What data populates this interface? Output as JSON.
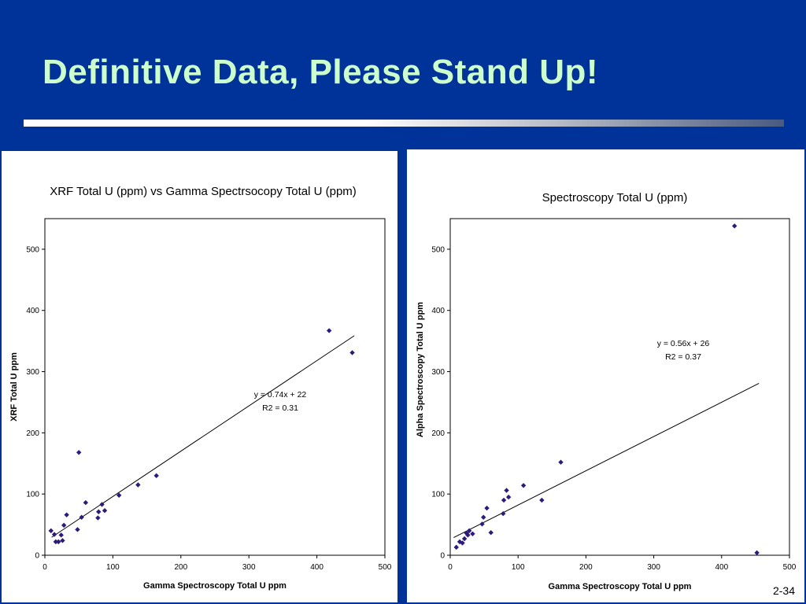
{
  "slide": {
    "title": "Definitive Data, Please Stand Up!",
    "page_number": "2-34",
    "colors": {
      "background": "#003399",
      "title": "#ccffcc",
      "marker": "#2e1a7a"
    }
  },
  "chart_data": [
    {
      "type": "scatter",
      "title": "XRF Total U (ppm) vs Gamma Spectrsocopy Total U (ppm)",
      "xlabel": "Gamma Spectroscopy Total U ppm",
      "ylabel": "XRF Total U ppm",
      "xlim": [
        0,
        500
      ],
      "ylim": [
        0,
        550
      ],
      "xticks": [
        0,
        100,
        200,
        300,
        400,
        500
      ],
      "yticks": [
        0,
        100,
        200,
        300,
        400,
        500
      ],
      "grid": false,
      "legend": "none",
      "points": [
        {
          "x": 9,
          "y": 40
        },
        {
          "x": 14,
          "y": 34
        },
        {
          "x": 16,
          "y": 22
        },
        {
          "x": 20,
          "y": 22
        },
        {
          "x": 24,
          "y": 33
        },
        {
          "x": 26,
          "y": 24
        },
        {
          "x": 28,
          "y": 49
        },
        {
          "x": 32,
          "y": 66
        },
        {
          "x": 48,
          "y": 42
        },
        {
          "x": 50,
          "y": 168
        },
        {
          "x": 54,
          "y": 62
        },
        {
          "x": 60,
          "y": 86
        },
        {
          "x": 78,
          "y": 61
        },
        {
          "x": 79,
          "y": 71
        },
        {
          "x": 84,
          "y": 83
        },
        {
          "x": 88,
          "y": 73
        },
        {
          "x": 109,
          "y": 98
        },
        {
          "x": 137,
          "y": 115
        },
        {
          "x": 164,
          "y": 130
        },
        {
          "x": 418,
          "y": 367
        },
        {
          "x": 452,
          "y": 331
        }
      ],
      "trendline": {
        "slope": 0.74,
        "intercept": 22,
        "x_range": [
          10,
          455
        ]
      },
      "annotation": {
        "equation": "y = 0.74x + 22",
        "r2": "R2 = 0.31"
      }
    },
    {
      "type": "scatter",
      "title": "Spectroscopy Total U (ppm)",
      "xlabel": "Gamma Spectroscopy Total U ppm",
      "ylabel": "Alpha Spectroscopy Total U ppm",
      "xlim": [
        0,
        500
      ],
      "ylim": [
        0,
        550
      ],
      "xticks": [
        0,
        100,
        200,
        300,
        400,
        500
      ],
      "yticks": [
        0,
        100,
        200,
        300,
        400,
        500
      ],
      "grid": false,
      "legend": "none",
      "points": [
        {
          "x": 9,
          "y": 13
        },
        {
          "x": 14,
          "y": 22
        },
        {
          "x": 18,
          "y": 20
        },
        {
          "x": 21,
          "y": 27
        },
        {
          "x": 24,
          "y": 36
        },
        {
          "x": 26,
          "y": 33
        },
        {
          "x": 28,
          "y": 40
        },
        {
          "x": 33,
          "y": 35
        },
        {
          "x": 47,
          "y": 51
        },
        {
          "x": 49,
          "y": 62
        },
        {
          "x": 54,
          "y": 77
        },
        {
          "x": 60,
          "y": 37
        },
        {
          "x": 78,
          "y": 68
        },
        {
          "x": 79,
          "y": 90
        },
        {
          "x": 83,
          "y": 106
        },
        {
          "x": 86,
          "y": 95
        },
        {
          "x": 108,
          "y": 114
        },
        {
          "x": 135,
          "y": 90
        },
        {
          "x": 163,
          "y": 152
        },
        {
          "x": 419,
          "y": 538
        },
        {
          "x": 452,
          "y": 4
        }
      ],
      "trendline": {
        "slope": 0.56,
        "intercept": 26,
        "x_range": [
          5,
          455
        ]
      },
      "annotation": {
        "equation": "y = 0.56x + 26",
        "r2": "R2 = 0.37"
      }
    }
  ]
}
